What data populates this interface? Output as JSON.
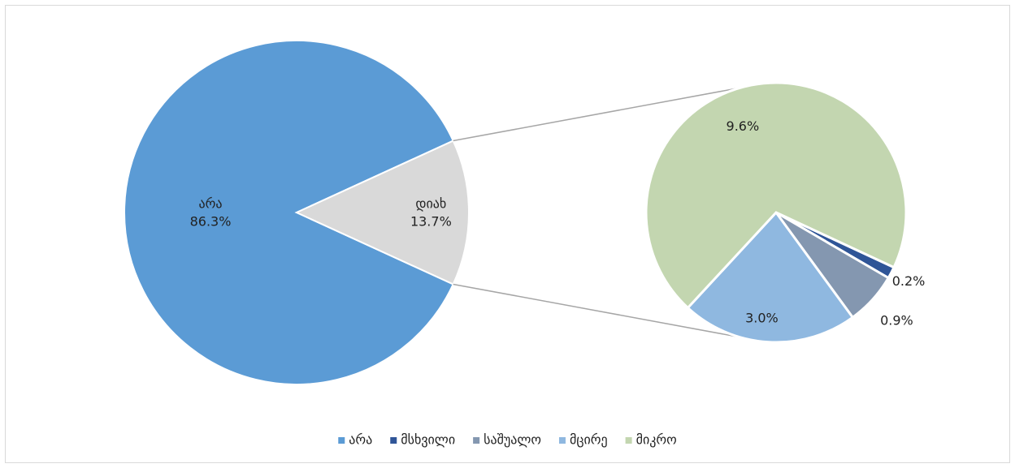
{
  "chart_data": {
    "type": "pie_of_pie",
    "categories": [
      "არა",
      "დიახ"
    ],
    "values": [
      86.3,
      13.7
    ],
    "value_labels": [
      "86.3%",
      "13.7%"
    ],
    "colors": [
      "#5b9bd5",
      "#d9d9d9"
    ],
    "secondary": {
      "categories": [
        "მსხვილი",
        "საშუალო",
        "მცირე",
        "მიკრო"
      ],
      "values": [
        0.2,
        0.9,
        3.0,
        9.6
      ],
      "value_labels": [
        "0.2%",
        "0.9%",
        "3.0%",
        "9.6%"
      ],
      "colors": [
        "#2f5597",
        "#8497b0",
        "#8fb8e0",
        "#c3d6b0"
      ]
    },
    "legend": "bottom"
  }
}
